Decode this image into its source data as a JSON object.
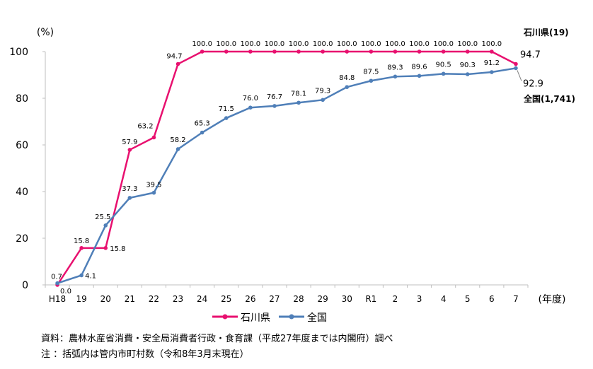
{
  "chart_data": {
    "type": "line",
    "ylabel": "(%)",
    "xlabel": "(年度)",
    "ylim": [
      0,
      100
    ],
    "yticks": [
      "0",
      "20",
      "40",
      "60",
      "80",
      "100"
    ],
    "categories": [
      "H18",
      "19",
      "20",
      "21",
      "22",
      "23",
      "24",
      "25",
      "26",
      "27",
      "28",
      "29",
      "30",
      "R1",
      "2",
      "3",
      "4",
      "5",
      "6",
      "7"
    ],
    "grid": false,
    "legend_position": "bottom",
    "series": [
      {
        "name": "石川県",
        "color": "#e8106f",
        "values": [
          0.0,
          15.8,
          15.8,
          57.9,
          63.2,
          94.7,
          100.0,
          100.0,
          100.0,
          100.0,
          100.0,
          100.0,
          100.0,
          100.0,
          100.0,
          100.0,
          100.0,
          100.0,
          100.0,
          94.7
        ],
        "labels": [
          "0.0",
          "15.8",
          "15.8",
          "57.9",
          "63.2",
          "94.7",
          "100.0",
          "100.0",
          "100.0",
          "100.0",
          "100.0",
          "100.0",
          "100.0",
          "100.0",
          "100.0",
          "100.0",
          "100.0",
          "100.0",
          "100.0",
          "94.7"
        ],
        "end_name": "石川県(19)"
      },
      {
        "name": "全国",
        "color": "#4f7fb8",
        "values": [
          0.7,
          4.1,
          25.5,
          37.3,
          39.5,
          58.2,
          65.3,
          71.5,
          76.0,
          76.7,
          78.1,
          79.3,
          84.8,
          87.5,
          89.3,
          89.6,
          90.5,
          90.3,
          91.2,
          92.9
        ],
        "labels": [
          "0.7",
          "4.1",
          "25.5",
          "37.3",
          "39.5",
          "58.2",
          "65.3",
          "71.5",
          "76.0",
          "76.7",
          "78.1",
          "79.3",
          "84.8",
          "87.5",
          "89.3",
          "89.6",
          "90.5",
          "90.3",
          "91.2",
          "92.9"
        ],
        "end_name": "全国(1,741)"
      }
    ]
  },
  "notes": {
    "source": "資料：農林水産省消費・安全局消費者行政・食育課（平成27年度までは内閣府）調べ",
    "note": "注 ：括弧内は管内市町村数（令和8年3月末現在）"
  }
}
